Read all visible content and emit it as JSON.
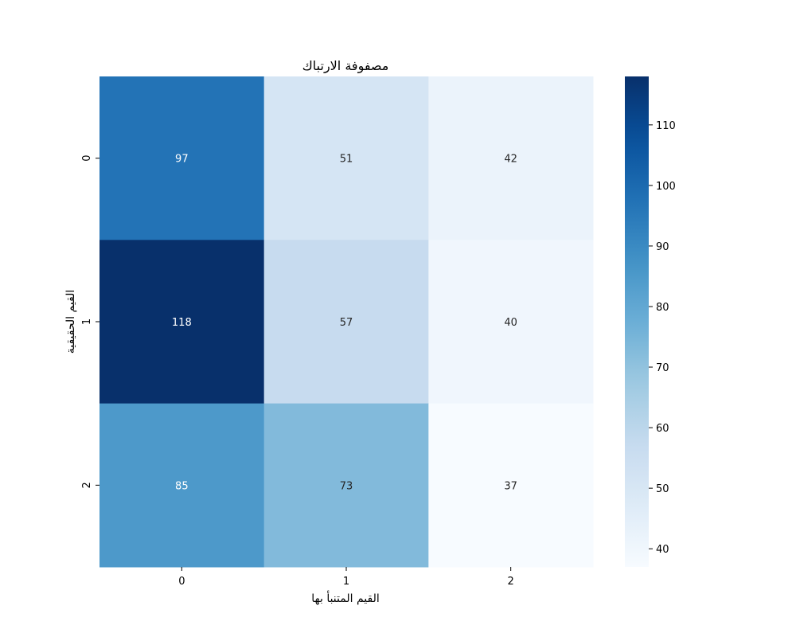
{
  "chart_data": {
    "type": "heatmap",
    "title": "مصفوفة الارتباك",
    "xlabel": "القيم المتنبأ بها",
    "ylabel": "القيم الحقيقية",
    "x_categories": [
      "0",
      "1",
      "2"
    ],
    "y_categories": [
      "0",
      "1",
      "2"
    ],
    "values": [
      [
        97,
        51,
        42
      ],
      [
        118,
        57,
        40
      ],
      [
        85,
        73,
        37
      ]
    ],
    "colormap": "Blues",
    "vmin": 37,
    "vmax": 118,
    "colorbar_ticks": [
      40,
      50,
      60,
      70,
      80,
      90,
      100,
      110
    ],
    "annotated": true,
    "grid": false
  }
}
